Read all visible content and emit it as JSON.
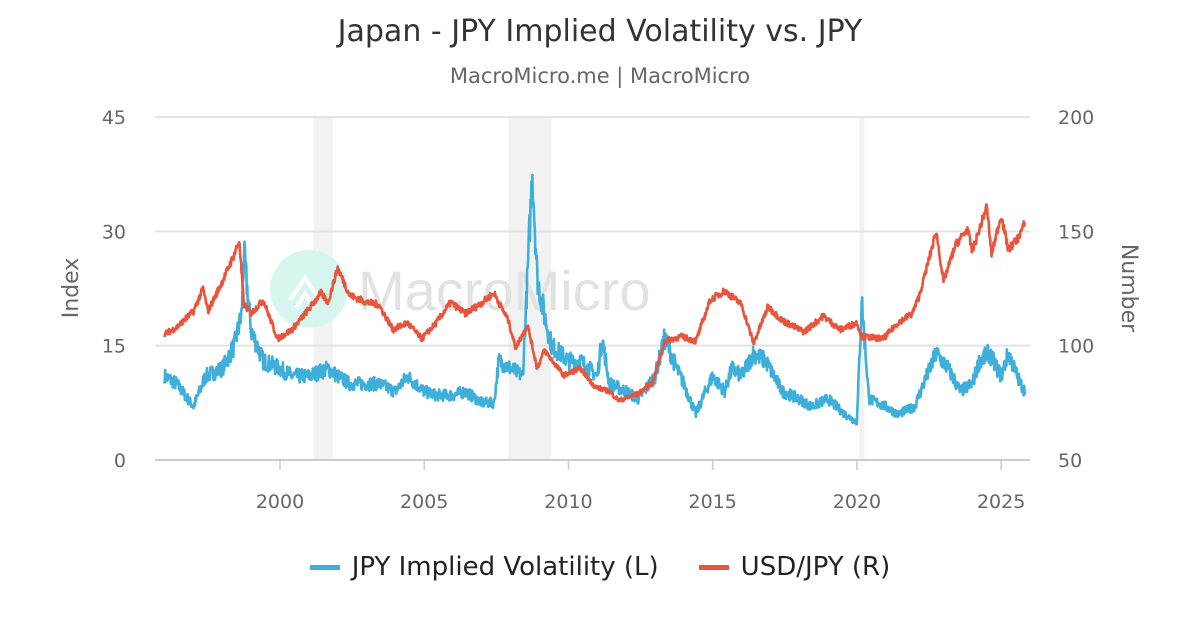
{
  "chart_data": {
    "type": "line",
    "title": "Japan - JPY Implied Volatility vs. JPY",
    "subtitle": "MacroMicro.me | MacroMicro",
    "watermark": "MacroMicro",
    "x_ticks": [
      "2000",
      "2005",
      "2010",
      "2015",
      "2020",
      "2025"
    ],
    "xlim": [
      "1995-09",
      "2026-01"
    ],
    "y_left": {
      "label": "Index",
      "ticks": [
        "0",
        "15",
        "30",
        "45"
      ],
      "range": [
        0,
        45
      ]
    },
    "y_right": {
      "label": "Number",
      "ticks": [
        "50",
        "100",
        "150",
        "200"
      ],
      "range": [
        50,
        200
      ]
    },
    "grid": true,
    "legend_position": "bottom",
    "shaded_periods": [
      [
        "2001-03",
        "2001-11"
      ],
      [
        "2007-12",
        "2009-06"
      ],
      [
        "2020-02",
        "2020-04"
      ]
    ],
    "shade_color": "#f2f2f2",
    "series": [
      {
        "name": "JPY Implied Volatility (L)",
        "axis": "left",
        "color": "#3eaedb",
        "points": [
          [
            "1996-01",
            11
          ],
          [
            "1996-06",
            10
          ],
          [
            "1997-01",
            7
          ],
          [
            "1997-06",
            11
          ],
          [
            "1998-01",
            12
          ],
          [
            "1998-06",
            15
          ],
          [
            "1998-09",
            19
          ],
          [
            "1998-10",
            27
          ],
          [
            "1999-01",
            17
          ],
          [
            "1999-06",
            13
          ],
          [
            "2000-01",
            12
          ],
          [
            "2000-06",
            11
          ],
          [
            "2001-01",
            11
          ],
          [
            "2001-09",
            12
          ],
          [
            "2002-01",
            11
          ],
          [
            "2002-06",
            10
          ],
          [
            "2003-01",
            10
          ],
          [
            "2003-06",
            10
          ],
          [
            "2004-01",
            9
          ],
          [
            "2004-06",
            11
          ],
          [
            "2005-01",
            9
          ],
          [
            "2005-06",
            8.5
          ],
          [
            "2006-01",
            8.5
          ],
          [
            "2006-06",
            9
          ],
          [
            "2007-01",
            7.5
          ],
          [
            "2007-06",
            7.5
          ],
          [
            "2007-08",
            13
          ],
          [
            "2008-01",
            12
          ],
          [
            "2008-06",
            11
          ],
          [
            "2008-10",
            38
          ],
          [
            "2008-12",
            24
          ],
          [
            "2009-03",
            19
          ],
          [
            "2009-06",
            15
          ],
          [
            "2010-01",
            13
          ],
          [
            "2010-06",
            13
          ],
          [
            "2011-01",
            11
          ],
          [
            "2011-03",
            16
          ],
          [
            "2011-06",
            10
          ],
          [
            "2012-01",
            9
          ],
          [
            "2012-06",
            8
          ],
          [
            "2013-01",
            11
          ],
          [
            "2013-05",
            16
          ],
          [
            "2013-10",
            12
          ],
          [
            "2014-01",
            10
          ],
          [
            "2014-06",
            6
          ],
          [
            "2014-10",
            9
          ],
          [
            "2015-01",
            11
          ],
          [
            "2015-06",
            9
          ],
          [
            "2015-09",
            12
          ],
          [
            "2016-01",
            11
          ],
          [
            "2016-06",
            14
          ],
          [
            "2016-11",
            13
          ],
          [
            "2017-06",
            9
          ],
          [
            "2018-01",
            8
          ],
          [
            "2018-06",
            7
          ],
          [
            "2019-01",
            8
          ],
          [
            "2019-08",
            6
          ],
          [
            "2020-01",
            5
          ],
          [
            "2020-03",
            21
          ],
          [
            "2020-06",
            8
          ],
          [
            "2021-01",
            7
          ],
          [
            "2021-06",
            6
          ],
          [
            "2022-01",
            7
          ],
          [
            "2022-06",
            11
          ],
          [
            "2022-10",
            14
          ],
          [
            "2023-03",
            12
          ],
          [
            "2023-08",
            9
          ],
          [
            "2024-01",
            10
          ],
          [
            "2024-04",
            13
          ],
          [
            "2024-08",
            14
          ],
          [
            "2025-01",
            11
          ],
          [
            "2025-04",
            14
          ],
          [
            "2025-09",
            10
          ],
          [
            "2025-11",
            9
          ]
        ]
      },
      {
        "name": "USD/JPY (R)",
        "axis": "right",
        "color": "#e8553c",
        "points": [
          [
            "1996-01",
            105
          ],
          [
            "1996-06",
            108
          ],
          [
            "1997-01",
            115
          ],
          [
            "1997-05",
            125
          ],
          [
            "1997-07",
            115
          ],
          [
            "1998-01",
            128
          ],
          [
            "1998-06",
            140
          ],
          [
            "1998-08",
            146
          ],
          [
            "1998-10",
            118
          ],
          [
            "1999-01",
            114
          ],
          [
            "1999-06",
            120
          ],
          [
            "1999-12",
            103
          ],
          [
            "2000-06",
            107
          ],
          [
            "2001-01",
            116
          ],
          [
            "2001-06",
            123
          ],
          [
            "2001-09",
            119
          ],
          [
            "2002-01",
            134
          ],
          [
            "2002-06",
            122
          ],
          [
            "2003-01",
            119
          ],
          [
            "2003-06",
            118
          ],
          [
            "2003-12",
            107
          ],
          [
            "2004-06",
            110
          ],
          [
            "2004-12",
            103
          ],
          [
            "2005-06",
            110
          ],
          [
            "2005-12",
            119
          ],
          [
            "2006-06",
            114
          ],
          [
            "2006-12",
            118
          ],
          [
            "2007-06",
            123
          ],
          [
            "2007-12",
            111
          ],
          [
            "2008-03",
            99
          ],
          [
            "2008-08",
            109
          ],
          [
            "2008-12",
            90
          ],
          [
            "2009-03",
            98
          ],
          [
            "2009-11",
            87
          ],
          [
            "2010-06",
            90
          ],
          [
            "2010-12",
            82
          ],
          [
            "2011-06",
            80
          ],
          [
            "2011-10",
            76
          ],
          [
            "2012-06",
            79
          ],
          [
            "2012-12",
            84
          ],
          [
            "2013-05",
            102
          ],
          [
            "2013-12",
            104
          ],
          [
            "2014-06",
            102
          ],
          [
            "2014-12",
            120
          ],
          [
            "2015-06",
            124
          ],
          [
            "2016-01",
            118
          ],
          [
            "2016-06",
            101
          ],
          [
            "2016-12",
            117
          ],
          [
            "2017-06",
            111
          ],
          [
            "2018-03",
            106
          ],
          [
            "2018-11",
            113
          ],
          [
            "2019-06",
            107
          ],
          [
            "2020-01",
            110
          ],
          [
            "2020-03",
            104
          ],
          [
            "2020-12",
            103
          ],
          [
            "2021-06",
            110
          ],
          [
            "2021-12",
            114
          ],
          [
            "2022-03",
            122
          ],
          [
            "2022-10",
            150
          ],
          [
            "2023-01",
            128
          ],
          [
            "2023-06",
            144
          ],
          [
            "2023-11",
            151
          ],
          [
            "2024-01",
            141
          ],
          [
            "2024-07",
            161
          ],
          [
            "2024-09",
            140
          ],
          [
            "2025-01",
            157
          ],
          [
            "2025-04",
            142
          ],
          [
            "2025-08",
            147
          ],
          [
            "2025-11",
            154
          ]
        ]
      }
    ]
  }
}
